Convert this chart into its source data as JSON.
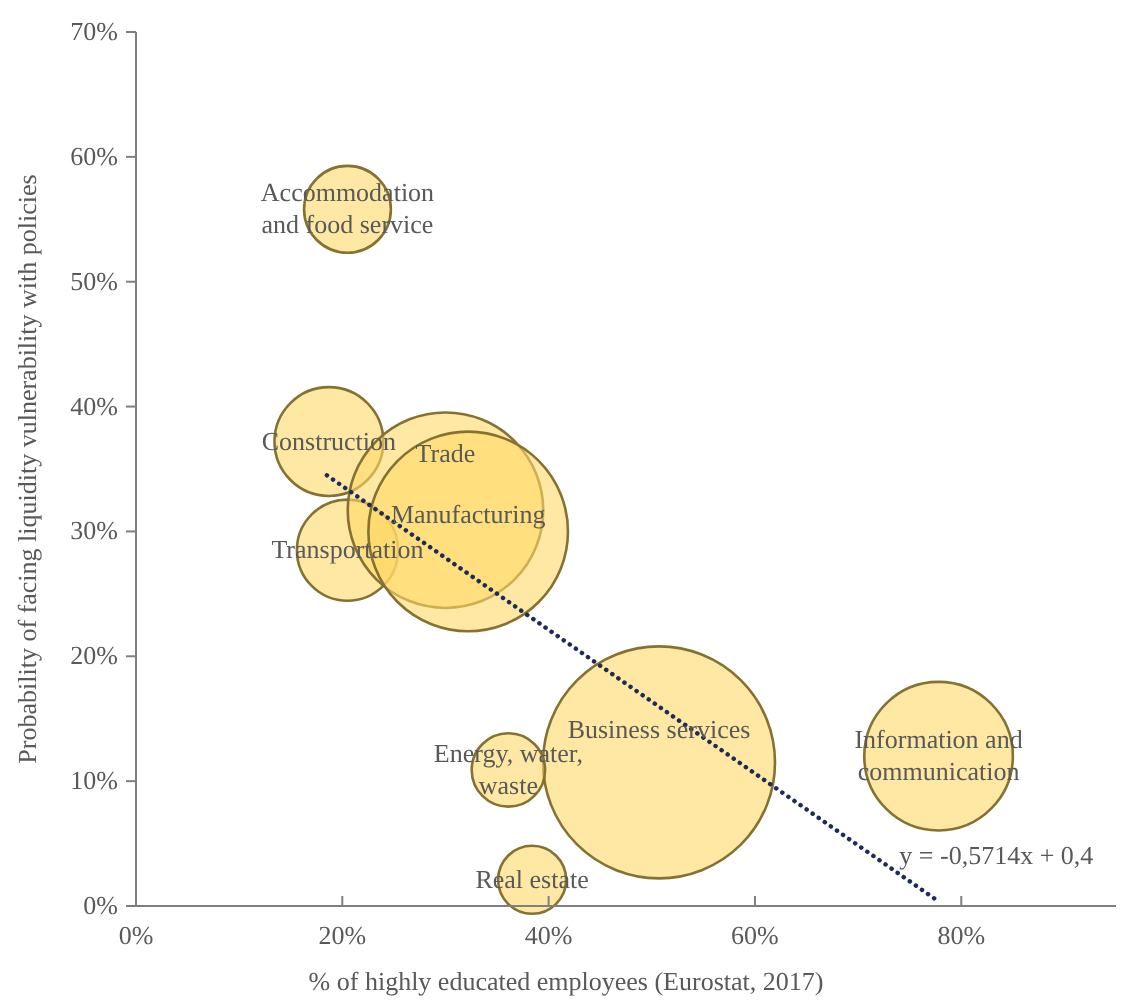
{
  "chart_data": {
    "type": "bubble",
    "xlabel": "% of highly educated employees (Eurostat, 2017)",
    "ylabel": "Probability of facing liquidity vulnerability with policies",
    "xlim": [
      0,
      95
    ],
    "xticks": [
      {
        "value": 0,
        "label": "0%"
      },
      {
        "value": 20,
        "label": "20%"
      },
      {
        "value": 40,
        "label": "40%"
      },
      {
        "value": 60,
        "label": "60%"
      },
      {
        "value": 80,
        "label": "80%"
      }
    ],
    "ylim": [
      0,
      70
    ],
    "yticks": [
      {
        "value": 0,
        "label": "0%"
      },
      {
        "value": 10,
        "label": "10%"
      },
      {
        "value": 20,
        "label": "20%"
      },
      {
        "value": 30,
        "label": "30%"
      },
      {
        "value": 40,
        "label": "40%"
      },
      {
        "value": 50,
        "label": "50%"
      },
      {
        "value": 60,
        "label": "60%"
      },
      {
        "value": 70,
        "label": "70%"
      }
    ],
    "grid": false,
    "series": [
      {
        "name": "Accommodation and food service",
        "color": "#ffd966",
        "x": [
          20.5
        ],
        "values": [
          55.8
        ],
        "sizes": [
          0.14
        ]
      },
      {
        "name": "Construction",
        "color": "#ffd966",
        "x": [
          18.7
        ],
        "values": [
          37.2
        ],
        "sizes": [
          0.22
        ]
      },
      {
        "name": "Transportation",
        "color": "#ffd966",
        "x": [
          20.5
        ],
        "values": [
          28.5
        ],
        "sizes": [
          0.19
        ]
      },
      {
        "name": "Trade",
        "color": "#ffd966",
        "x": [
          30.0
        ],
        "values": [
          31.7
        ],
        "sizes": [
          0.71
        ]
      },
      {
        "name": "Manufacturing",
        "color": "#ffd966",
        "x": [
          32.2
        ],
        "values": [
          30.0
        ],
        "sizes": [
          0.74
        ]
      },
      {
        "name": "Business services",
        "color": "#ffd966",
        "x": [
          50.7
        ],
        "values": [
          11.5
        ],
        "sizes": [
          1
        ]
      },
      {
        "name": "Information and communication",
        "color": "#ffd966",
        "x": [
          77.8
        ],
        "values": [
          12.0
        ],
        "sizes": [
          0.41
        ]
      },
      {
        "name": "Energy, water, waste",
        "color": "#ffd966",
        "x": [
          36.1
        ],
        "values": [
          10.9
        ],
        "sizes": [
          0.1
        ]
      },
      {
        "name": "Real estate",
        "color": "#ffd966",
        "x": [
          38.4
        ],
        "values": [
          2.1
        ],
        "sizes": [
          0.086
        ]
      },
      {
        "type": "line",
        "color": "#1f2a5a",
        "line_style": "dotted",
        "x": [
          18.5,
          77.4
        ],
        "values": [
          34.5,
          0.6
        ]
      }
    ],
    "annotations": [
      {
        "text": "y = -0,5714x + 0,4",
        "x": 74,
        "y": 3.4
      }
    ]
  }
}
